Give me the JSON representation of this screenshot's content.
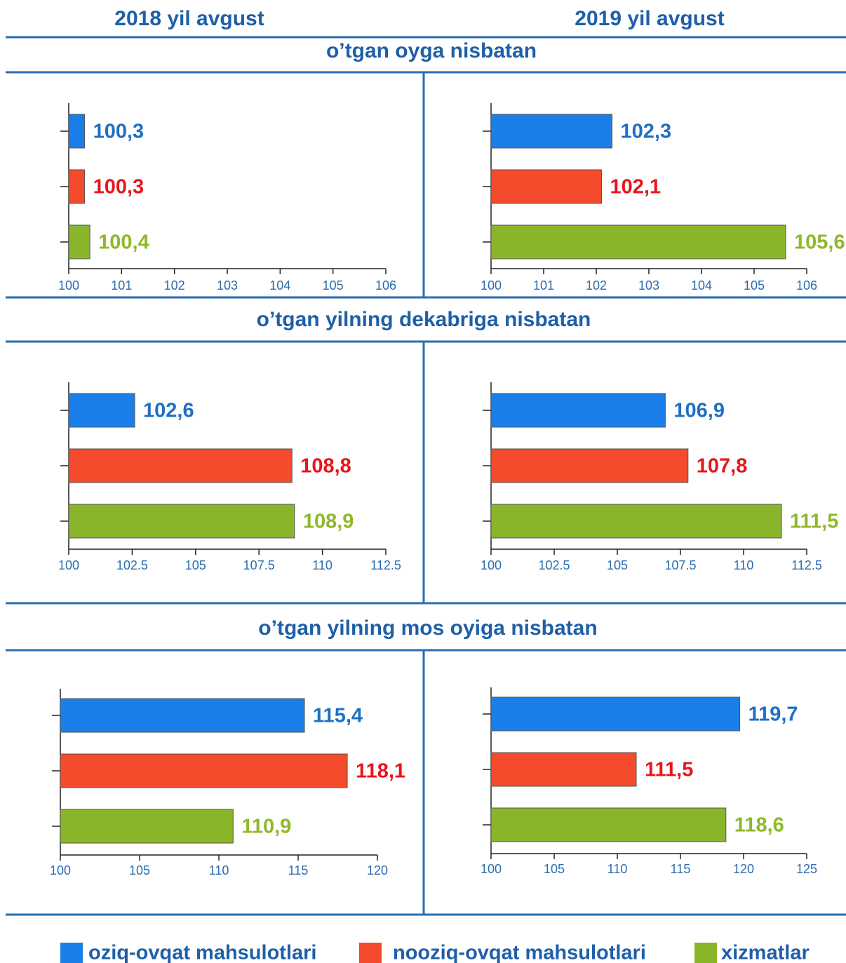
{
  "headers": [
    "2018 yil avgust",
    "2019 yil avgust"
  ],
  "sections": [
    "o’tgan oyga nisbatan",
    "o’tgan yilning dekabriga nisbatan",
    "o’tgan yilning mos oyiga nisbatan"
  ],
  "legend": [
    {
      "name": "oziq-ovqat mahsulotlari",
      "color": "#1a7fe8"
    },
    {
      "name": "nooziq-ovqat mahsulotlari",
      "color": "#f34b2b"
    },
    {
      "name": "xizmatlar",
      "color": "#8ab52a"
    }
  ],
  "chart_data": [
    {
      "type": "bar",
      "orientation": "horizontal",
      "categories": [
        null,
        null,
        null
      ],
      "values": [
        100.3,
        100.3,
        100.4
      ],
      "value_labels": [
        "100,3",
        "100,3",
        "100,4"
      ],
      "colors": [
        "#1a7fe8",
        "#f34b2b",
        "#8ab52a"
      ],
      "label_colors": [
        "#1f6fc4",
        "#e8141c",
        "#8fb82a"
      ],
      "xlim": [
        100,
        106
      ],
      "xticks": [
        100,
        101,
        102,
        103,
        104,
        105,
        106
      ]
    },
    {
      "type": "bar",
      "orientation": "horizontal",
      "categories": [
        null,
        null,
        null
      ],
      "values": [
        102.3,
        102.1,
        105.6
      ],
      "value_labels": [
        "102,3",
        "102,1",
        "105,6"
      ],
      "colors": [
        "#1a7fe8",
        "#f34b2b",
        "#8ab52a"
      ],
      "label_colors": [
        "#1f6fc4",
        "#e8141c",
        "#8fb82a"
      ],
      "xlim": [
        100,
        106
      ],
      "xticks": [
        100,
        101,
        102,
        103,
        104,
        105,
        106
      ]
    },
    {
      "type": "bar",
      "orientation": "horizontal",
      "categories": [
        null,
        null,
        null
      ],
      "values": [
        102.6,
        108.8,
        108.9
      ],
      "value_labels": [
        "102,6",
        "108,8",
        "108,9"
      ],
      "colors": [
        "#1a7fe8",
        "#f34b2b",
        "#8ab52a"
      ],
      "label_colors": [
        "#1f6fc4",
        "#e8141c",
        "#8fb82a"
      ],
      "xlim": [
        100,
        112.5
      ],
      "xticks": [
        100,
        102.5,
        105,
        107.5,
        110,
        112.5
      ]
    },
    {
      "type": "bar",
      "orientation": "horizontal",
      "categories": [
        null,
        null,
        null
      ],
      "values": [
        106.9,
        107.8,
        111.5
      ],
      "value_labels": [
        "106,9",
        "107,8",
        "111,5"
      ],
      "colors": [
        "#1a7fe8",
        "#f34b2b",
        "#8ab52a"
      ],
      "label_colors": [
        "#1f6fc4",
        "#e8141c",
        "#8fb82a"
      ],
      "xlim": [
        100,
        112.5
      ],
      "xticks": [
        100,
        102.5,
        105,
        107.5,
        110,
        112.5
      ]
    },
    {
      "type": "bar",
      "orientation": "horizontal",
      "categories": [
        null,
        null,
        null
      ],
      "values": [
        115.4,
        118.1,
        110.9
      ],
      "value_labels": [
        "115,4",
        "118,1",
        "110,9"
      ],
      "colors": [
        "#1a7fe8",
        "#f34b2b",
        "#8ab52a"
      ],
      "label_colors": [
        "#1f6fc4",
        "#e8141c",
        "#8fb82a"
      ],
      "xlim": [
        100,
        120
      ],
      "xticks": [
        100,
        105,
        110,
        115,
        120
      ]
    },
    {
      "type": "bar",
      "orientation": "horizontal",
      "categories": [
        null,
        null,
        null
      ],
      "values": [
        119.7,
        111.5,
        118.6
      ],
      "value_labels": [
        "119,7",
        "111,5",
        "118,6"
      ],
      "colors": [
        "#1a7fe8",
        "#f34b2b",
        "#8ab52a"
      ],
      "label_colors": [
        "#1f6fc4",
        "#e8141c",
        "#8fb82a"
      ],
      "xlim": [
        100,
        125
      ],
      "xticks": [
        100,
        105,
        110,
        115,
        120,
        125
      ]
    }
  ]
}
